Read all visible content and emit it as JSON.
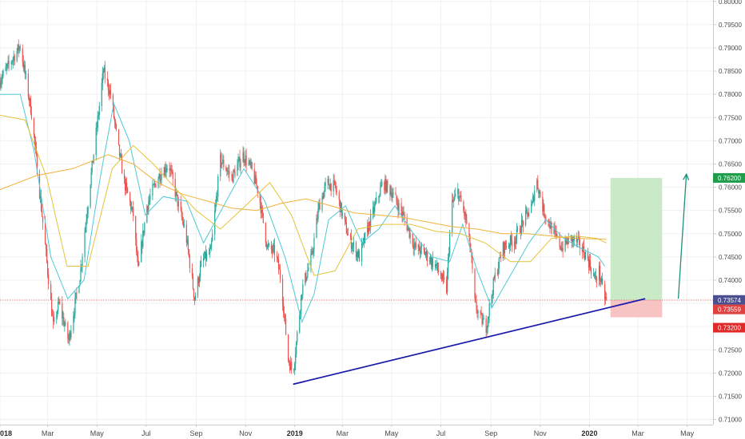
{
  "chart_data": {
    "type": "candlestick",
    "x_labels": [
      {
        "label": "018",
        "date": "2018-01-01",
        "major": true
      },
      {
        "label": "Mar",
        "date": "2018-03-01",
        "major": false
      },
      {
        "label": "May",
        "date": "2018-05-01",
        "major": false
      },
      {
        "label": "Jul",
        "date": "2018-07-01",
        "major": false
      },
      {
        "label": "Sep",
        "date": "2018-09-01",
        "major": false
      },
      {
        "label": "Nov",
        "date": "2018-11-01",
        "major": false
      },
      {
        "label": "2019",
        "date": "2019-01-01",
        "major": true
      },
      {
        "label": "Mar",
        "date": "2019-03-01",
        "major": false
      },
      {
        "label": "May",
        "date": "2019-05-01",
        "major": false
      },
      {
        "label": "Jul",
        "date": "2019-07-01",
        "major": false
      },
      {
        "label": "Sep",
        "date": "2019-09-01",
        "major": false
      },
      {
        "label": "Nov",
        "date": "2019-11-01",
        "major": false
      },
      {
        "label": "2020",
        "date": "2020-01-01",
        "major": true
      },
      {
        "label": "Mar",
        "date": "2020-03-01",
        "major": false
      },
      {
        "label": "May",
        "date": "2020-05-01",
        "major": false
      }
    ],
    "y_ticks": [
      "0.80000",
      "0.79500",
      "0.79000",
      "0.78500",
      "0.78000",
      "0.77500",
      "0.77000",
      "0.76500",
      "0.76000",
      "0.75500",
      "0.75000",
      "0.74500",
      "0.74000",
      "0.73500",
      "0.73000",
      "0.72500",
      "0.72000",
      "0.71500",
      "0.71000"
    ],
    "ylim": [
      0.7089,
      0.8003
    ],
    "xlim": [
      "2018-01-01",
      "2020-06-02"
    ],
    "grid": true,
    "price_keypoints": [
      {
        "date": "2018-01-01",
        "close": 0.783
      },
      {
        "date": "2018-01-26",
        "close": 0.7905
      },
      {
        "date": "2018-02-09",
        "close": 0.776
      },
      {
        "date": "2018-02-25",
        "close": 0.749
      },
      {
        "date": "2018-03-08",
        "close": 0.73
      },
      {
        "date": "2018-03-15",
        "close": 0.735
      },
      {
        "date": "2018-03-27",
        "close": 0.727
      },
      {
        "date": "2018-04-10",
        "close": 0.741
      },
      {
        "date": "2018-04-22",
        "close": 0.76
      },
      {
        "date": "2018-05-01",
        "close": 0.773
      },
      {
        "date": "2018-05-09",
        "close": 0.785
      },
      {
        "date": "2018-05-18",
        "close": 0.78
      },
      {
        "date": "2018-05-27",
        "close": 0.769
      },
      {
        "date": "2018-06-04",
        "close": 0.761
      },
      {
        "date": "2018-06-15",
        "close": 0.754
      },
      {
        "date": "2018-06-21",
        "close": 0.742
      },
      {
        "date": "2018-07-02",
        "close": 0.756
      },
      {
        "date": "2018-07-15",
        "close": 0.762
      },
      {
        "date": "2018-07-29",
        "close": 0.765
      },
      {
        "date": "2018-08-10",
        "close": 0.756
      },
      {
        "date": "2018-08-19",
        "close": 0.75
      },
      {
        "date": "2018-08-30",
        "close": 0.736
      },
      {
        "date": "2018-09-08",
        "close": 0.744
      },
      {
        "date": "2018-09-19",
        "close": 0.746
      },
      {
        "date": "2018-10-01",
        "close": 0.766
      },
      {
        "date": "2018-10-15",
        "close": 0.762
      },
      {
        "date": "2018-10-29",
        "close": 0.767
      },
      {
        "date": "2018-11-08",
        "close": 0.764
      },
      {
        "date": "2018-11-17",
        "close": 0.759
      },
      {
        "date": "2018-11-28",
        "close": 0.747
      },
      {
        "date": "2018-12-08",
        "close": 0.746
      },
      {
        "date": "2018-12-15",
        "close": 0.74
      },
      {
        "date": "2018-12-24",
        "close": 0.723
      },
      {
        "date": "2018-12-30",
        "close": 0.72
      },
      {
        "date": "2019-01-10",
        "close": 0.738
      },
      {
        "date": "2019-01-22",
        "close": 0.745
      },
      {
        "date": "2019-01-31",
        "close": 0.756
      },
      {
        "date": "2019-02-10",
        "close": 0.761
      },
      {
        "date": "2019-02-20",
        "close": 0.76
      },
      {
        "date": "2019-03-01",
        "close": 0.754
      },
      {
        "date": "2019-03-09",
        "close": 0.749
      },
      {
        "date": "2019-03-22",
        "close": 0.745
      },
      {
        "date": "2019-04-05",
        "close": 0.753
      },
      {
        "date": "2019-04-20",
        "close": 0.761
      },
      {
        "date": "2019-05-01",
        "close": 0.759
      },
      {
        "date": "2019-05-15",
        "close": 0.754
      },
      {
        "date": "2019-05-30",
        "close": 0.747
      },
      {
        "date": "2019-06-10",
        "close": 0.746
      },
      {
        "date": "2019-06-25",
        "close": 0.743
      },
      {
        "date": "2019-07-08",
        "close": 0.738
      },
      {
        "date": "2019-07-14",
        "close": 0.756
      },
      {
        "date": "2019-07-22",
        "close": 0.759
      },
      {
        "date": "2019-08-01",
        "close": 0.753
      },
      {
        "date": "2019-08-07",
        "close": 0.746
      },
      {
        "date": "2019-08-12",
        "close": 0.735
      },
      {
        "date": "2019-08-18",
        "close": 0.732
      },
      {
        "date": "2019-08-26",
        "close": 0.73
      },
      {
        "date": "2019-09-05",
        "close": 0.74
      },
      {
        "date": "2019-09-16",
        "close": 0.747
      },
      {
        "date": "2019-10-01",
        "close": 0.749
      },
      {
        "date": "2019-10-12",
        "close": 0.753
      },
      {
        "date": "2019-10-22",
        "close": 0.756
      },
      {
        "date": "2019-10-27",
        "close": 0.762
      },
      {
        "date": "2019-11-05",
        "close": 0.755
      },
      {
        "date": "2019-11-18",
        "close": 0.75
      },
      {
        "date": "2019-11-28",
        "close": 0.747
      },
      {
        "date": "2019-12-08",
        "close": 0.749
      },
      {
        "date": "2019-12-18",
        "close": 0.748
      },
      {
        "date": "2019-12-29",
        "close": 0.745
      },
      {
        "date": "2020-01-08",
        "close": 0.74
      },
      {
        "date": "2020-01-13",
        "close": 0.742
      },
      {
        "date": "2020-01-18",
        "close": 0.737
      },
      {
        "date": "2020-01-22",
        "close": 0.7357
      }
    ],
    "moving_averages": [
      {
        "color": "#4ec9d8",
        "points": [
          {
            "date": "2018-01-01",
            "value": 0.78
          },
          {
            "date": "2018-01-26",
            "value": 0.78
          },
          {
            "date": "2018-02-12",
            "value": 0.768
          },
          {
            "date": "2018-03-05",
            "value": 0.745
          },
          {
            "date": "2018-03-26",
            "value": 0.736
          },
          {
            "date": "2018-04-15",
            "value": 0.74
          },
          {
            "date": "2018-05-05",
            "value": 0.762
          },
          {
            "date": "2018-05-22",
            "value": 0.778
          },
          {
            "date": "2018-06-10",
            "value": 0.77
          },
          {
            "date": "2018-06-30",
            "value": 0.754
          },
          {
            "date": "2018-07-22",
            "value": 0.758
          },
          {
            "date": "2018-08-20",
            "value": 0.757
          },
          {
            "date": "2018-09-10",
            "value": 0.748
          },
          {
            "date": "2018-10-05",
            "value": 0.756
          },
          {
            "date": "2018-10-30",
            "value": 0.764
          },
          {
            "date": "2018-11-25",
            "value": 0.757
          },
          {
            "date": "2018-12-20",
            "value": 0.745
          },
          {
            "date": "2019-01-10",
            "value": 0.731
          },
          {
            "date": "2019-01-25",
            "value": 0.737
          },
          {
            "date": "2019-02-12",
            "value": 0.753
          },
          {
            "date": "2019-03-05",
            "value": 0.756
          },
          {
            "date": "2019-03-25",
            "value": 0.748
          },
          {
            "date": "2019-04-15",
            "value": 0.751
          },
          {
            "date": "2019-05-05",
            "value": 0.756
          },
          {
            "date": "2019-05-28",
            "value": 0.75
          },
          {
            "date": "2019-06-20",
            "value": 0.745
          },
          {
            "date": "2019-07-12",
            "value": 0.744
          },
          {
            "date": "2019-07-28",
            "value": 0.752
          },
          {
            "date": "2019-08-15",
            "value": 0.742
          },
          {
            "date": "2019-09-02",
            "value": 0.734
          },
          {
            "date": "2019-09-25",
            "value": 0.741
          },
          {
            "date": "2019-10-18",
            "value": 0.748
          },
          {
            "date": "2019-11-08",
            "value": 0.753
          },
          {
            "date": "2019-11-30",
            "value": 0.749
          },
          {
            "date": "2019-12-20",
            "value": 0.747
          },
          {
            "date": "2020-01-12",
            "value": 0.745
          },
          {
            "date": "2020-01-20",
            "value": 0.743
          }
        ]
      },
      {
        "color": "#e6c33a",
        "points": [
          {
            "date": "2018-01-01",
            "value": 0.7755
          },
          {
            "date": "2018-02-01",
            "value": 0.7745
          },
          {
            "date": "2018-02-28",
            "value": 0.762
          },
          {
            "date": "2018-03-25",
            "value": 0.743
          },
          {
            "date": "2018-04-20",
            "value": 0.743
          },
          {
            "date": "2018-05-20",
            "value": 0.764
          },
          {
            "date": "2018-06-15",
            "value": 0.769
          },
          {
            "date": "2018-07-10",
            "value": 0.765
          },
          {
            "date": "2018-08-05",
            "value": 0.76
          },
          {
            "date": "2018-09-01",
            "value": 0.755
          },
          {
            "date": "2018-10-01",
            "value": 0.751
          },
          {
            "date": "2018-11-01",
            "value": 0.756
          },
          {
            "date": "2018-12-01",
            "value": 0.761
          },
          {
            "date": "2018-12-28",
            "value": 0.754
          },
          {
            "date": "2019-01-25",
            "value": 0.741
          },
          {
            "date": "2019-02-20",
            "value": 0.742
          },
          {
            "date": "2019-03-20",
            "value": 0.751
          },
          {
            "date": "2019-04-20",
            "value": 0.752
          },
          {
            "date": "2019-05-25",
            "value": 0.752
          },
          {
            "date": "2019-06-25",
            "value": 0.7505
          },
          {
            "date": "2019-07-25",
            "value": 0.75
          },
          {
            "date": "2019-08-25",
            "value": 0.748
          },
          {
            "date": "2019-09-25",
            "value": 0.744
          },
          {
            "date": "2019-10-20",
            "value": 0.744
          },
          {
            "date": "2019-11-15",
            "value": 0.749
          },
          {
            "date": "2019-12-15",
            "value": 0.7495
          },
          {
            "date": "2020-01-10",
            "value": 0.749
          },
          {
            "date": "2020-01-22",
            "value": 0.748
          }
        ]
      },
      {
        "color": "#f0b23a",
        "points": [
          {
            "date": "2018-01-01",
            "value": 0.7595
          },
          {
            "date": "2018-02-15",
            "value": 0.7625
          },
          {
            "date": "2018-04-01",
            "value": 0.764
          },
          {
            "date": "2018-05-15",
            "value": 0.767
          },
          {
            "date": "2018-06-15",
            "value": 0.765
          },
          {
            "date": "2018-07-15",
            "value": 0.761
          },
          {
            "date": "2018-08-15",
            "value": 0.7585
          },
          {
            "date": "2018-09-15",
            "value": 0.757
          },
          {
            "date": "2018-10-15",
            "value": 0.7555
          },
          {
            "date": "2018-11-15",
            "value": 0.755
          },
          {
            "date": "2018-12-15",
            "value": 0.7565
          },
          {
            "date": "2019-01-15",
            "value": 0.7575
          },
          {
            "date": "2019-02-15",
            "value": 0.756
          },
          {
            "date": "2019-03-15",
            "value": 0.7545
          },
          {
            "date": "2019-04-15",
            "value": 0.754
          },
          {
            "date": "2019-05-15",
            "value": 0.7535
          },
          {
            "date": "2019-06-15",
            "value": 0.7525
          },
          {
            "date": "2019-07-15",
            "value": 0.7515
          },
          {
            "date": "2019-08-15",
            "value": 0.751
          },
          {
            "date": "2019-09-15",
            "value": 0.75
          },
          {
            "date": "2019-10-15",
            "value": 0.75
          },
          {
            "date": "2019-11-15",
            "value": 0.7495
          },
          {
            "date": "2019-12-15",
            "value": 0.749
          },
          {
            "date": "2020-01-22",
            "value": 0.7488
          }
        ]
      }
    ],
    "trendline": {
      "color": "#1a1aaa",
      "start": {
        "date": "2018-12-30",
        "value": 0.7176
      },
      "end": {
        "date": "2020-03-10",
        "value": 0.736
      }
    },
    "position": {
      "start": "2020-01-27",
      "end": "2020-03-31",
      "target": 0.762,
      "entry": 0.7357,
      "stop": 0.732,
      "profit_color": "#c8eac6",
      "loss_color": "#f7c3c3"
    },
    "arrow": {
      "color": "#1e8f7a",
      "start": {
        "date": "2020-04-20",
        "value": 0.736
      },
      "end": {
        "date": "2020-04-30",
        "value": 0.7628
      }
    },
    "price_line": {
      "value": 0.7357,
      "color": "#e05a5a"
    },
    "price_tags": [
      {
        "label": "0.76200",
        "value": 0.762,
        "color": "#1e9e4a"
      },
      {
        "label": "0.73574",
        "value": 0.73574,
        "color": "#4b4f8f"
      },
      {
        "label": "0.73559",
        "value": 0.73559,
        "color": "#e04040"
      },
      {
        "label": "0.73200",
        "value": 0.732,
        "color": "#e02a2a"
      }
    ],
    "up_color": "#26a69a",
    "down_color": "#ef5350"
  }
}
